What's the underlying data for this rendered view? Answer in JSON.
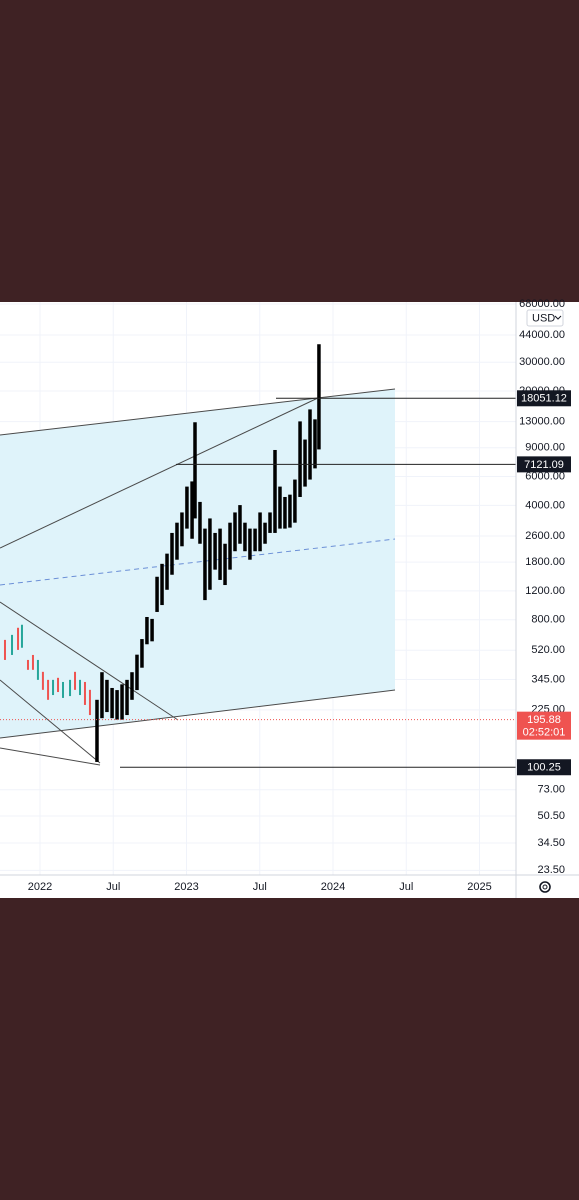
{
  "chart_data": {
    "type": "ohlc",
    "currency": "USD",
    "log_scale": true,
    "grid": true,
    "xlim": [
      2021.727,
      2025.249
    ],
    "ylim": [
      22,
      70000
    ],
    "xticks": [
      {
        "value": 2022,
        "label": "2022"
      },
      {
        "value": 2022.5,
        "label": "Jul"
      },
      {
        "value": 2023,
        "label": "2023"
      },
      {
        "value": 2023.5,
        "label": "Jul"
      },
      {
        "value": 2024,
        "label": "2024"
      },
      {
        "value": 2024.5,
        "label": "Jul"
      },
      {
        "value": 2025,
        "label": "2025"
      }
    ],
    "yticks": [
      {
        "value": 68000,
        "label": "68000.00"
      },
      {
        "value": 44000,
        "label": "44000.00"
      },
      {
        "value": 30000,
        "label": "30000.00"
      },
      {
        "value": 20000,
        "label": "20000.00"
      },
      {
        "value": 13000,
        "label": "13000.00"
      },
      {
        "value": 9000,
        "label": "9000.00"
      },
      {
        "value": 6000,
        "label": "6000.00"
      },
      {
        "value": 4000,
        "label": "4000.00"
      },
      {
        "value": 2600,
        "label": "2600.00"
      },
      {
        "value": 1800,
        "label": "1800.00"
      },
      {
        "value": 1200,
        "label": "1200.00"
      },
      {
        "value": 800,
        "label": "800.00"
      },
      {
        "value": 520,
        "label": "520.00"
      },
      {
        "value": 345,
        "label": "345.00"
      },
      {
        "value": 225,
        "label": "225.00"
      },
      {
        "value": 73,
        "label": "73.00"
      },
      {
        "value": 50.5,
        "label": "50.50"
      },
      {
        "value": 34.5,
        "label": "34.50"
      },
      {
        "value": 23.5,
        "label": "23.50"
      }
    ],
    "series": [
      {
        "colors": [
          "#ef5350",
          "#26a69a",
          "#ef5350",
          "#26a69a",
          "#ef5350",
          "#ef5350",
          "#26a69a",
          "#ef5350",
          "#ef5350",
          "#26a69a",
          "#ef5350",
          "#26a69a",
          "#26a69a",
          "#ef5350",
          "#26a69a",
          "#ef5350",
          "#ef5350"
        ],
        "x": [
          2021.761,
          2021.809,
          2021.85,
          2021.877,
          2021.918,
          2021.952,
          2021.986,
          2022.02,
          2022.055,
          2022.089,
          2022.123,
          2022.157,
          2022.205,
          2022.239,
          2022.273,
          2022.307,
          2022.341
        ],
        "high": [
          602,
          646,
          714,
          745,
          454,
          487,
          454,
          384,
          343,
          343,
          353,
          333,
          343,
          384,
          343,
          333,
          298
        ],
        "low": [
          454,
          487,
          523,
          539,
          395,
          395,
          343,
          298,
          259,
          277,
          289,
          266,
          273,
          298,
          277,
          241,
          209
        ]
      },
      {
        "color": "#000000",
        "x": [
          2022.389,
          2022.423,
          2022.457,
          2022.492,
          2022.526,
          2022.56,
          2022.594,
          2022.628,
          2022.662,
          2022.696,
          2022.73,
          2022.765,
          2022.799,
          2022.833,
          2022.867,
          2022.901,
          2022.935,
          2022.969,
          2023.003,
          2023.038,
          2023.058,
          2023.092,
          2023.126,
          2023.16,
          2023.195,
          2023.229,
          2023.263,
          2023.297,
          2023.331,
          2023.365,
          2023.399,
          2023.433,
          2023.468,
          2023.502,
          2023.536,
          2023.57,
          2023.604,
          2023.638,
          2023.672,
          2023.706,
          2023.74,
          2023.775,
          2023.809,
          2023.843,
          2023.877,
          2023.904
        ],
        "high": [
          259,
          382,
          343,
          306,
          297,
          322,
          343,
          382,
          489,
          609,
          831,
          809,
          1464,
          1756,
          2027,
          2713,
          3134,
          3620,
          5208,
          5602,
          12880,
          4198,
          2883,
          3327,
          2713,
          2883,
          2330,
          3134,
          3620,
          4014,
          3134,
          2883,
          2883,
          3620,
          3134,
          3620,
          8720,
          5208,
          4500,
          4650,
          5750,
          13040,
          10100,
          15440,
          13420,
          38630
        ],
        "low": [
          108,
          200,
          218,
          200,
          196,
          196,
          209,
          259,
          297,
          407,
          566,
          590,
          892,
          983,
          1219,
          1506,
          1861,
          2248,
          2883,
          2500,
          3327,
          2330,
          1054,
          1219,
          1618,
          1400,
          1303,
          1618,
          2097,
          2330,
          2097,
          1861,
          2097,
          2097,
          2330,
          2713,
          2713,
          2883,
          2883,
          2924,
          3134,
          4500,
          5208,
          5750,
          6730,
          8790
        ]
      }
    ],
    "price_lines": [
      18051.12,
      7121.09,
      100.25
    ],
    "last_price": {
      "value": 195.88,
      "countdown": "02:52:01"
    }
  }
}
